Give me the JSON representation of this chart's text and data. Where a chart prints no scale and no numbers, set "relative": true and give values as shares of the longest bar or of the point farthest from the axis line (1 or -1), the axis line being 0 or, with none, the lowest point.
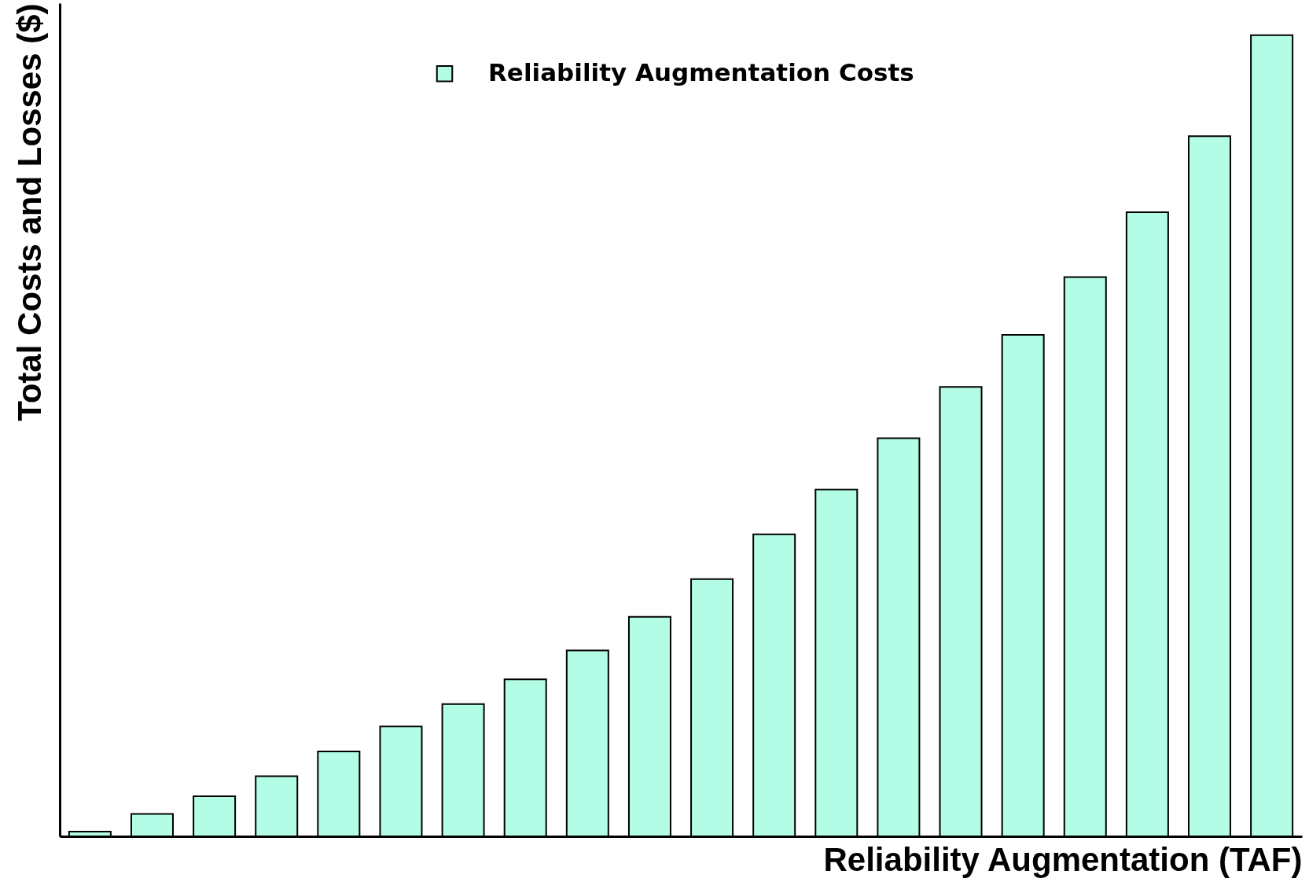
{
  "chart_data": {
    "type": "bar",
    "xlabel": "Reliability Augmentation (TAF)",
    "ylabel": "Total Costs and Losses ($)",
    "relative": true,
    "legend": "top",
    "categories": [
      null,
      null,
      null,
      null,
      null,
      null,
      null,
      null,
      null,
      null,
      null,
      null,
      null,
      null,
      null,
      null,
      null,
      null,
      null,
      null
    ],
    "series": [
      {
        "name": "Reliability Augmentation Costs",
        "color": "#b3fce5",
        "values": [
          0.006,
          0.028,
          0.05,
          0.075,
          0.106,
          0.137,
          0.165,
          0.196,
          0.232,
          0.274,
          0.321,
          0.377,
          0.433,
          0.497,
          0.561,
          0.626,
          0.698,
          0.779,
          0.874,
          1
        ]
      }
    ]
  }
}
